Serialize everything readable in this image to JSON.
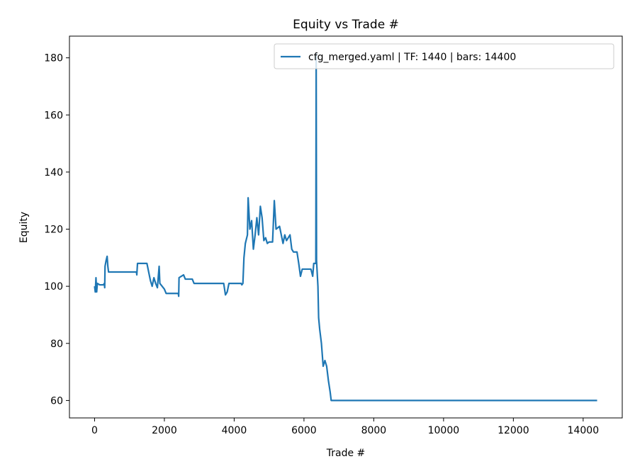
{
  "chart_data": {
    "type": "line",
    "title": "Equity vs Trade #",
    "x_label": "Trade #",
    "y_label": "Equity",
    "x": [
      0,
      20,
      40,
      60,
      80,
      150,
      250,
      280,
      290,
      300,
      330,
      360,
      380,
      400,
      1200,
      1210,
      1230,
      1500,
      1550,
      1600,
      1650,
      1700,
      1750,
      1800,
      1850,
      1870,
      2000,
      2050,
      2400,
      2410,
      2420,
      2550,
      2600,
      2800,
      2850,
      3700,
      3750,
      3800,
      3850,
      4200,
      4220,
      4250,
      4280,
      4320,
      4380,
      4400,
      4450,
      4500,
      4550,
      4600,
      4650,
      4700,
      4750,
      4800,
      4850,
      4900,
      4950,
      5000,
      5100,
      5150,
      5200,
      5300,
      5400,
      5450,
      5500,
      5600,
      5650,
      5700,
      5800,
      5850,
      5900,
      5950,
      6200,
      6250,
      6280,
      6340,
      6350,
      6360,
      6400,
      6420,
      6450,
      6500,
      6550,
      6600,
      6650,
      6700,
      6750,
      6780,
      14400
    ],
    "series": [
      {
        "name": "cfg_merged.yaml | TF: 1440 | bars: 14400",
        "color": "#1f77b4",
        "values": [
          100,
          98,
          103,
          98,
          101,
          100.5,
          100.5,
          101,
          99.5,
          107,
          109,
          110.5,
          107,
          105,
          105,
          104,
          108,
          108,
          105,
          102,
          100,
          103,
          101,
          99.5,
          107,
          101,
          99,
          97.5,
          97.5,
          96.5,
          103,
          104,
          102.5,
          102.5,
          101,
          101,
          97,
          98,
          101,
          101,
          100.5,
          101,
          110,
          115,
          118,
          131,
          120,
          123,
          113,
          118,
          124,
          118,
          128,
          124,
          116,
          117,
          115,
          115.5,
          115.5,
          130,
          120,
          121,
          115,
          118,
          116,
          118,
          113,
          112,
          112,
          108,
          103.5,
          106,
          106,
          103.5,
          108,
          108,
          181.5,
          109,
          100,
          89,
          85,
          80,
          72,
          74,
          72,
          67,
          63,
          60,
          60
        ]
      }
    ],
    "xlim": [
      -720,
      15120
    ],
    "ylim": [
      53.9,
      187.6
    ],
    "xticks": [
      0,
      2000,
      4000,
      6000,
      8000,
      10000,
      12000,
      14000
    ],
    "yticks": [
      60,
      80,
      100,
      120,
      140,
      160,
      180
    ],
    "legend": "upper right"
  }
}
